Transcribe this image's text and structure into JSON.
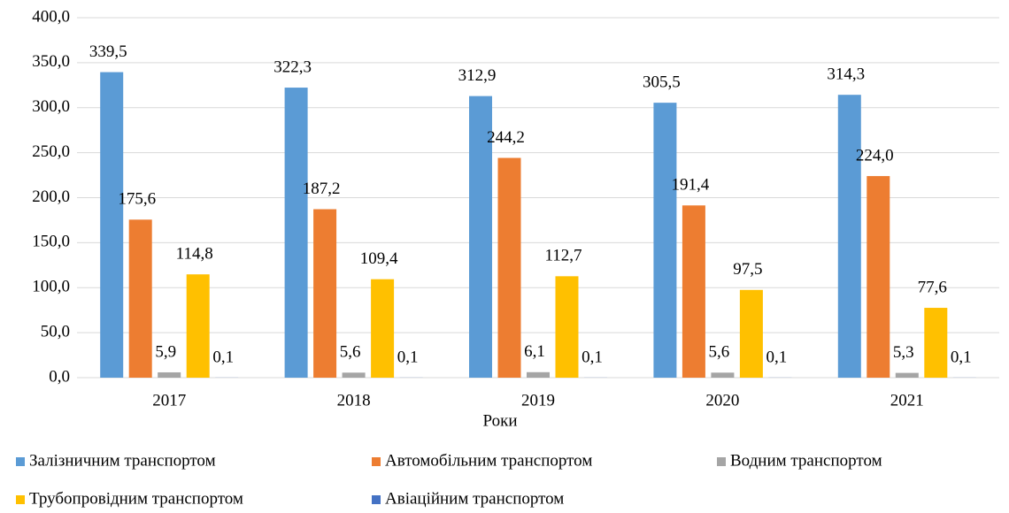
{
  "chart_data": {
    "type": "bar",
    "x_label": "Роки",
    "categories": [
      "2017",
      "2018",
      "2019",
      "2020",
      "2021"
    ],
    "series": [
      {
        "name": "Залізничним транспортом",
        "color": "#5b9bd5",
        "values": [
          339.5,
          322.3,
          312.9,
          305.5,
          314.3
        ],
        "value_labels": [
          "339,5",
          "322,3",
          "312,9",
          "305,5",
          "314,3"
        ]
      },
      {
        "name": "Автомобільним транспортом",
        "color": "#ed7d31",
        "values": [
          175.6,
          187.2,
          244.2,
          191.4,
          224.0
        ],
        "value_labels": [
          "175,6",
          "187,2",
          "244,2",
          "191,4",
          "224,0"
        ]
      },
      {
        "name": "Водним транспортом",
        "color": "#a5a5a5",
        "values": [
          5.9,
          5.6,
          6.1,
          5.6,
          5.3
        ],
        "value_labels": [
          "5,9",
          "5,6",
          "6,1",
          "5,6",
          "5,3"
        ]
      },
      {
        "name": "Трубопровідним транспортом",
        "color": "#ffc000",
        "values": [
          114.8,
          109.4,
          112.7,
          97.5,
          77.6
        ],
        "value_labels": [
          "114,8",
          "109,4",
          "112,7",
          "97,5",
          "77,6"
        ]
      },
      {
        "name": "Авіаційним транспортом",
        "color": "#4472c4",
        "values": [
          0.1,
          0.1,
          0.1,
          0.1,
          0.1
        ],
        "value_labels": [
          "0,1",
          "0,1",
          "0,1",
          "0,1",
          "0,1"
        ]
      }
    ],
    "ylim": [
      0,
      400
    ],
    "yticks": [
      {
        "value": 0,
        "label": "0,0"
      },
      {
        "value": 50,
        "label": "50,0"
      },
      {
        "value": 100,
        "label": "100,0"
      },
      {
        "value": 150,
        "label": "150,0"
      },
      {
        "value": 200,
        "label": "200,0"
      },
      {
        "value": 250,
        "label": "250,0"
      },
      {
        "value": 300,
        "label": "300,0"
      },
      {
        "value": 350,
        "label": "350,0"
      },
      {
        "value": 400,
        "label": "400,0"
      }
    ],
    "grid": true,
    "legend": "bottom"
  }
}
